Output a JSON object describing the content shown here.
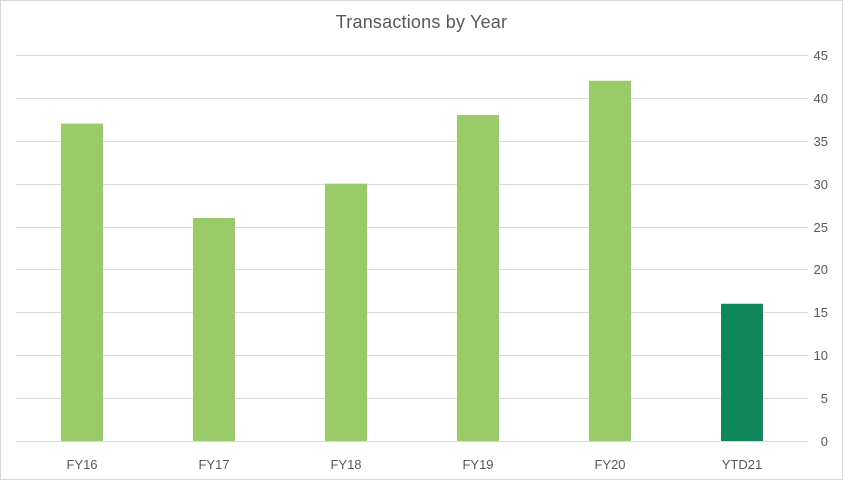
{
  "chart_data": {
    "type": "bar",
    "title": "Transactions by Year",
    "xlabel": "",
    "ylabel": "",
    "categories": [
      "FY16",
      "FY17",
      "FY18",
      "FY19",
      "FY20",
      "YTD21"
    ],
    "values": [
      37,
      26,
      30,
      38,
      42,
      16
    ],
    "bar_colors": [
      "#9ACB69",
      "#9ACB69",
      "#9ACB69",
      "#9ACB69",
      "#9ACB69",
      "#10875A"
    ],
    "ylim": [
      0,
      45
    ],
    "yticks": [
      0,
      5,
      10,
      15,
      20,
      25,
      30,
      35,
      40,
      45
    ],
    "y_axis_side": "right",
    "grid": true,
    "gridline_color": "#d9d9d9",
    "legend": "none"
  }
}
